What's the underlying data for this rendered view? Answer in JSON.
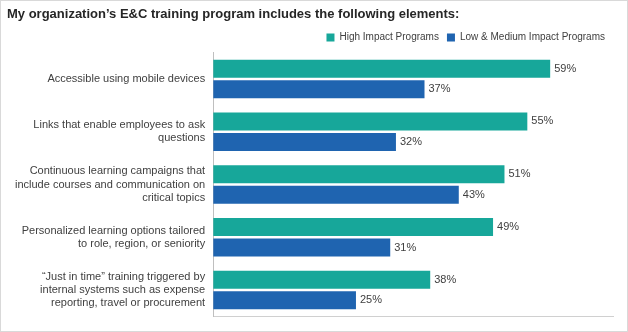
{
  "chart_data": {
    "type": "bar",
    "orientation": "horizontal",
    "title": "My organization’s E&C training program includes the following elements:",
    "categories": [
      "Accessible using mobile devices",
      "Links that enable employees to ask questions",
      "Continuous learning campaigns that include courses and communication on critical topics",
      "Personalized learning options tailored to role, region, or seniority",
      "“Just in time” training triggered by internal systems such as expense reporting, travel or procurement"
    ],
    "series": [
      {
        "name": "High Impact Programs",
        "color": "#17a79a",
        "values": [
          59,
          55,
          51,
          49,
          38
        ],
        "value_labels": [
          "59%",
          "55%",
          "51%",
          "49%",
          "38%"
        ]
      },
      {
        "name": "Low & Medium Impact Programs",
        "color": "#1f64b0",
        "values": [
          37,
          32,
          43,
          31,
          25
        ],
        "value_labels": [
          "37%",
          "32%",
          "43%",
          "31%",
          "25%"
        ]
      }
    ],
    "xlim": [
      0,
      70
    ],
    "grid": false,
    "legend": "top-right",
    "data_labels": true,
    "tick_labels": "y"
  }
}
